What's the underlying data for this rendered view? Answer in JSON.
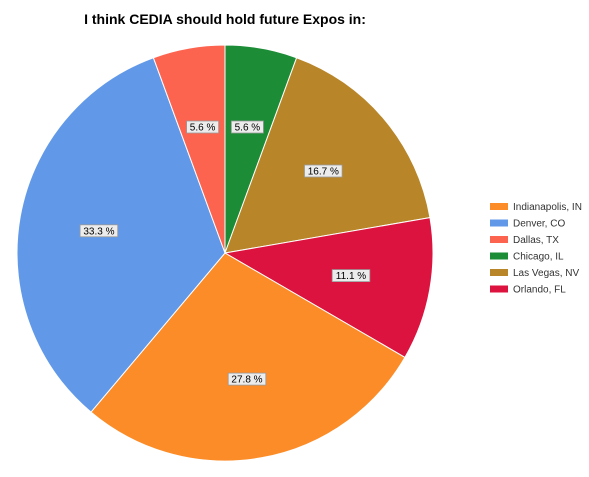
{
  "chart_data": {
    "type": "pie",
    "title": "I think CEDIA should hold future Expos in:",
    "legend_position": "right",
    "slices": [
      {
        "label": "Indianapolis, IN",
        "value": 27.8,
        "value_label": "27.8 %",
        "color": "#fb8c27"
      },
      {
        "label": "Denver, CO",
        "value": 33.3,
        "value_label": "33.3 %",
        "color": "#6199e8"
      },
      {
        "label": "Dallas, TX",
        "value": 5.6,
        "value_label": "5.6 %",
        "color": "#fd6450"
      },
      {
        "label": "Chicago, IL",
        "value": 5.6,
        "value_label": "5.6 %",
        "color": "#1d8c37"
      },
      {
        "label": "Las Vegas, NV",
        "value": 16.7,
        "value_label": "16.7 %",
        "color": "#b88528"
      },
      {
        "label": "Orlando, FL",
        "value": 11.1,
        "value_label": "11.1 %",
        "color": "#dc133e"
      }
    ]
  }
}
